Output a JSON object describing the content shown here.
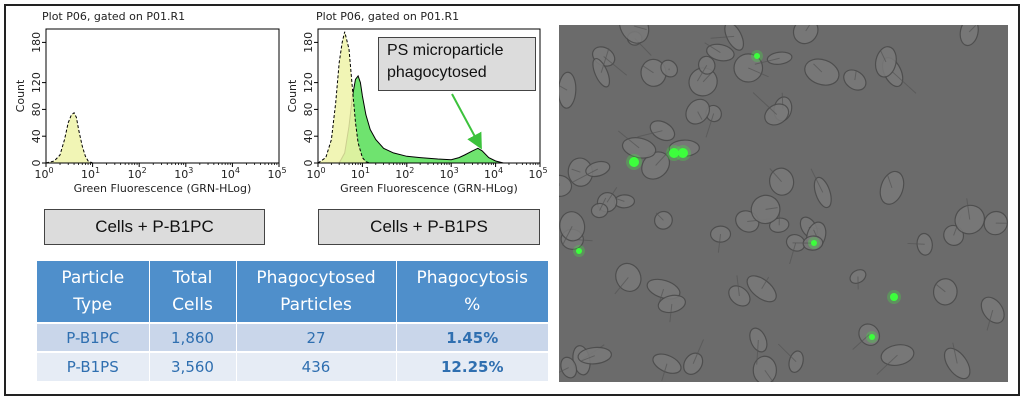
{
  "histograms": [
    {
      "title": "Plot P06, gated on P01.R1",
      "ylabel": "Count",
      "xlabel": "Green Fluorescence (GRN-HLog)",
      "caption": "Cells + P-B1PC",
      "yticks": [
        "0",
        "40",
        "80",
        "120",
        "180"
      ],
      "xtick_bases": [
        "10",
        "10",
        "10",
        "10",
        "10",
        "10"
      ],
      "xtick_exps": [
        "0",
        "1",
        "2",
        "3",
        "4",
        "5"
      ]
    },
    {
      "title": "Plot P06, gated on P01.R1",
      "ylabel": "Count",
      "xlabel": "Green Fluorescence (GRN-HLog)",
      "caption": "Cells + P-B1PS",
      "yticks": [
        "0",
        "40",
        "80",
        "120",
        "180"
      ],
      "xtick_bases": [
        "10",
        "10",
        "10",
        "10",
        "10",
        "10"
      ],
      "xtick_exps": [
        "0",
        "1",
        "2",
        "3",
        "4",
        "5"
      ],
      "callout": [
        "PS microparticle",
        "phagocytosed"
      ]
    }
  ],
  "chart_data": [
    {
      "type": "area",
      "title": "Plot P06, gated on P01.R1",
      "xlabel": "Green Fluorescence (GRN-HLog)",
      "ylabel": "Count",
      "x_scale": "log",
      "xlim": [
        1,
        100000
      ],
      "ylim": [
        0,
        200
      ],
      "series": [
        {
          "x": [
            1,
            1.5,
            2,
            2.5,
            3,
            3.5,
            4,
            4.5,
            5,
            6,
            7,
            8,
            10
          ],
          "values": [
            0,
            3,
            12,
            35,
            60,
            72,
            75,
            68,
            50,
            25,
            10,
            3,
            0
          ]
        }
      ]
    },
    {
      "type": "area",
      "title": "Plot P06, gated on P01.R1",
      "xlabel": "Green Fluorescence (GRN-HLog)",
      "ylabel": "Count",
      "x_scale": "log",
      "xlim": [
        1,
        100000
      ],
      "ylim": [
        0,
        200
      ],
      "series": [
        {
          "x": [
            1,
            1.5,
            2,
            2.5,
            3,
            3.5,
            4,
            5,
            6,
            7,
            8,
            10,
            12,
            15
          ],
          "values": [
            0,
            8,
            35,
            90,
            150,
            180,
            196,
            170,
            110,
            60,
            30,
            8,
            2,
            0
          ]
        },
        {
          "x": [
            3,
            4,
            5,
            6,
            7,
            8,
            9,
            10,
            12,
            15,
            20,
            30,
            50,
            100,
            200,
            500,
            1000,
            1500,
            2000,
            3000,
            4000,
            5000,
            7000,
            10000,
            15000
          ],
          "values": [
            0,
            15,
            55,
            100,
            125,
            130,
            120,
            100,
            72,
            50,
            35,
            22,
            15,
            10,
            8,
            6,
            5,
            8,
            12,
            18,
            22,
            18,
            8,
            3,
            0
          ]
        }
      ]
    }
  ],
  "table": {
    "headers": [
      [
        "Particle",
        "Type"
      ],
      [
        "Total",
        "Cells"
      ],
      [
        "Phagocytosed",
        "Particles"
      ],
      [
        "Phagocytosis",
        "%"
      ]
    ],
    "rows": [
      [
        "P-B1PC",
        "1,860",
        "27",
        "1.45%"
      ],
      [
        "P-B1PS",
        "3,560",
        "436",
        "12.25%"
      ]
    ]
  },
  "colors": {
    "table_header": "#4f8fcb",
    "table_row_dark": "#c9d6ea",
    "table_row_light": "#e6ecf5",
    "table_text": "#2f6fb0",
    "hist_yellow": "#eef3a8",
    "hist_green": "#5fe05f",
    "micro_background": "#6b6b6b",
    "fluorescent_green": "#3cff3c"
  }
}
